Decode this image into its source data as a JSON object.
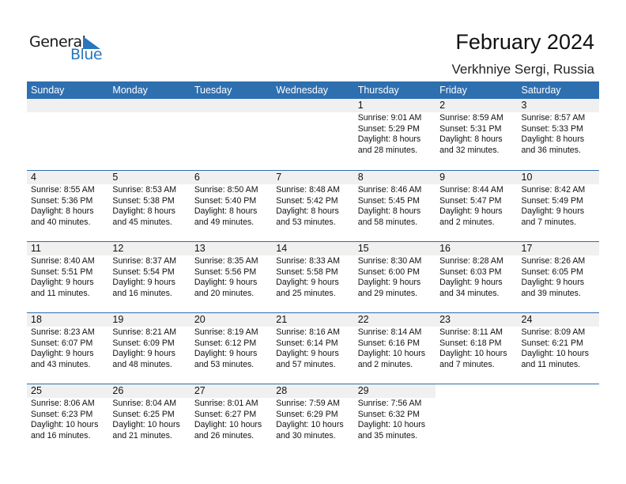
{
  "logo": {
    "text_general": "General",
    "text_blue": "Blue",
    "accent": "#2a75bb"
  },
  "title": "February 2024",
  "location": "Verkhniye Sergi, Russia",
  "header_color": "#2e6fb0",
  "days": [
    "Sunday",
    "Monday",
    "Tuesday",
    "Wednesday",
    "Thursday",
    "Friday",
    "Saturday"
  ],
  "weeks": [
    [
      null,
      null,
      null,
      null,
      {
        "day": "1",
        "sunrise": "Sunrise: 9:01 AM",
        "sunset": "Sunset: 5:29 PM",
        "daylight": "Daylight: 8 hours",
        "minutes": "and 28 minutes."
      },
      {
        "day": "2",
        "sunrise": "Sunrise: 8:59 AM",
        "sunset": "Sunset: 5:31 PM",
        "daylight": "Daylight: 8 hours",
        "minutes": "and 32 minutes."
      },
      {
        "day": "3",
        "sunrise": "Sunrise: 8:57 AM",
        "sunset": "Sunset: 5:33 PM",
        "daylight": "Daylight: 8 hours",
        "minutes": "and 36 minutes."
      }
    ],
    [
      {
        "day": "4",
        "sunrise": "Sunrise: 8:55 AM",
        "sunset": "Sunset: 5:36 PM",
        "daylight": "Daylight: 8 hours",
        "minutes": "and 40 minutes."
      },
      {
        "day": "5",
        "sunrise": "Sunrise: 8:53 AM",
        "sunset": "Sunset: 5:38 PM",
        "daylight": "Daylight: 8 hours",
        "minutes": "and 45 minutes."
      },
      {
        "day": "6",
        "sunrise": "Sunrise: 8:50 AM",
        "sunset": "Sunset: 5:40 PM",
        "daylight": "Daylight: 8 hours",
        "minutes": "and 49 minutes."
      },
      {
        "day": "7",
        "sunrise": "Sunrise: 8:48 AM",
        "sunset": "Sunset: 5:42 PM",
        "daylight": "Daylight: 8 hours",
        "minutes": "and 53 minutes."
      },
      {
        "day": "8",
        "sunrise": "Sunrise: 8:46 AM",
        "sunset": "Sunset: 5:45 PM",
        "daylight": "Daylight: 8 hours",
        "minutes": "and 58 minutes."
      },
      {
        "day": "9",
        "sunrise": "Sunrise: 8:44 AM",
        "sunset": "Sunset: 5:47 PM",
        "daylight": "Daylight: 9 hours",
        "minutes": "and 2 minutes."
      },
      {
        "day": "10",
        "sunrise": "Sunrise: 8:42 AM",
        "sunset": "Sunset: 5:49 PM",
        "daylight": "Daylight: 9 hours",
        "minutes": "and 7 minutes."
      }
    ],
    [
      {
        "day": "11",
        "sunrise": "Sunrise: 8:40 AM",
        "sunset": "Sunset: 5:51 PM",
        "daylight": "Daylight: 9 hours",
        "minutes": "and 11 minutes."
      },
      {
        "day": "12",
        "sunrise": "Sunrise: 8:37 AM",
        "sunset": "Sunset: 5:54 PM",
        "daylight": "Daylight: 9 hours",
        "minutes": "and 16 minutes."
      },
      {
        "day": "13",
        "sunrise": "Sunrise: 8:35 AM",
        "sunset": "Sunset: 5:56 PM",
        "daylight": "Daylight: 9 hours",
        "minutes": "and 20 minutes."
      },
      {
        "day": "14",
        "sunrise": "Sunrise: 8:33 AM",
        "sunset": "Sunset: 5:58 PM",
        "daylight": "Daylight: 9 hours",
        "minutes": "and 25 minutes."
      },
      {
        "day": "15",
        "sunrise": "Sunrise: 8:30 AM",
        "sunset": "Sunset: 6:00 PM",
        "daylight": "Daylight: 9 hours",
        "minutes": "and 29 minutes."
      },
      {
        "day": "16",
        "sunrise": "Sunrise: 8:28 AM",
        "sunset": "Sunset: 6:03 PM",
        "daylight": "Daylight: 9 hours",
        "minutes": "and 34 minutes."
      },
      {
        "day": "17",
        "sunrise": "Sunrise: 8:26 AM",
        "sunset": "Sunset: 6:05 PM",
        "daylight": "Daylight: 9 hours",
        "minutes": "and 39 minutes."
      }
    ],
    [
      {
        "day": "18",
        "sunrise": "Sunrise: 8:23 AM",
        "sunset": "Sunset: 6:07 PM",
        "daylight": "Daylight: 9 hours",
        "minutes": "and 43 minutes."
      },
      {
        "day": "19",
        "sunrise": "Sunrise: 8:21 AM",
        "sunset": "Sunset: 6:09 PM",
        "daylight": "Daylight: 9 hours",
        "minutes": "and 48 minutes."
      },
      {
        "day": "20",
        "sunrise": "Sunrise: 8:19 AM",
        "sunset": "Sunset: 6:12 PM",
        "daylight": "Daylight: 9 hours",
        "minutes": "and 53 minutes."
      },
      {
        "day": "21",
        "sunrise": "Sunrise: 8:16 AM",
        "sunset": "Sunset: 6:14 PM",
        "daylight": "Daylight: 9 hours",
        "minutes": "and 57 minutes."
      },
      {
        "day": "22",
        "sunrise": "Sunrise: 8:14 AM",
        "sunset": "Sunset: 6:16 PM",
        "daylight": "Daylight: 10 hours",
        "minutes": "and 2 minutes."
      },
      {
        "day": "23",
        "sunrise": "Sunrise: 8:11 AM",
        "sunset": "Sunset: 6:18 PM",
        "daylight": "Daylight: 10 hours",
        "minutes": "and 7 minutes."
      },
      {
        "day": "24",
        "sunrise": "Sunrise: 8:09 AM",
        "sunset": "Sunset: 6:21 PM",
        "daylight": "Daylight: 10 hours",
        "minutes": "and 11 minutes."
      }
    ],
    [
      {
        "day": "25",
        "sunrise": "Sunrise: 8:06 AM",
        "sunset": "Sunset: 6:23 PM",
        "daylight": "Daylight: 10 hours",
        "minutes": "and 16 minutes."
      },
      {
        "day": "26",
        "sunrise": "Sunrise: 8:04 AM",
        "sunset": "Sunset: 6:25 PM",
        "daylight": "Daylight: 10 hours",
        "minutes": "and 21 minutes."
      },
      {
        "day": "27",
        "sunrise": "Sunrise: 8:01 AM",
        "sunset": "Sunset: 6:27 PM",
        "daylight": "Daylight: 10 hours",
        "minutes": "and 26 minutes."
      },
      {
        "day": "28",
        "sunrise": "Sunrise: 7:59 AM",
        "sunset": "Sunset: 6:29 PM",
        "daylight": "Daylight: 10 hours",
        "minutes": "and 30 minutes."
      },
      {
        "day": "29",
        "sunrise": "Sunrise: 7:56 AM",
        "sunset": "Sunset: 6:32 PM",
        "daylight": "Daylight: 10 hours",
        "minutes": "and 35 minutes."
      },
      null,
      null
    ]
  ]
}
